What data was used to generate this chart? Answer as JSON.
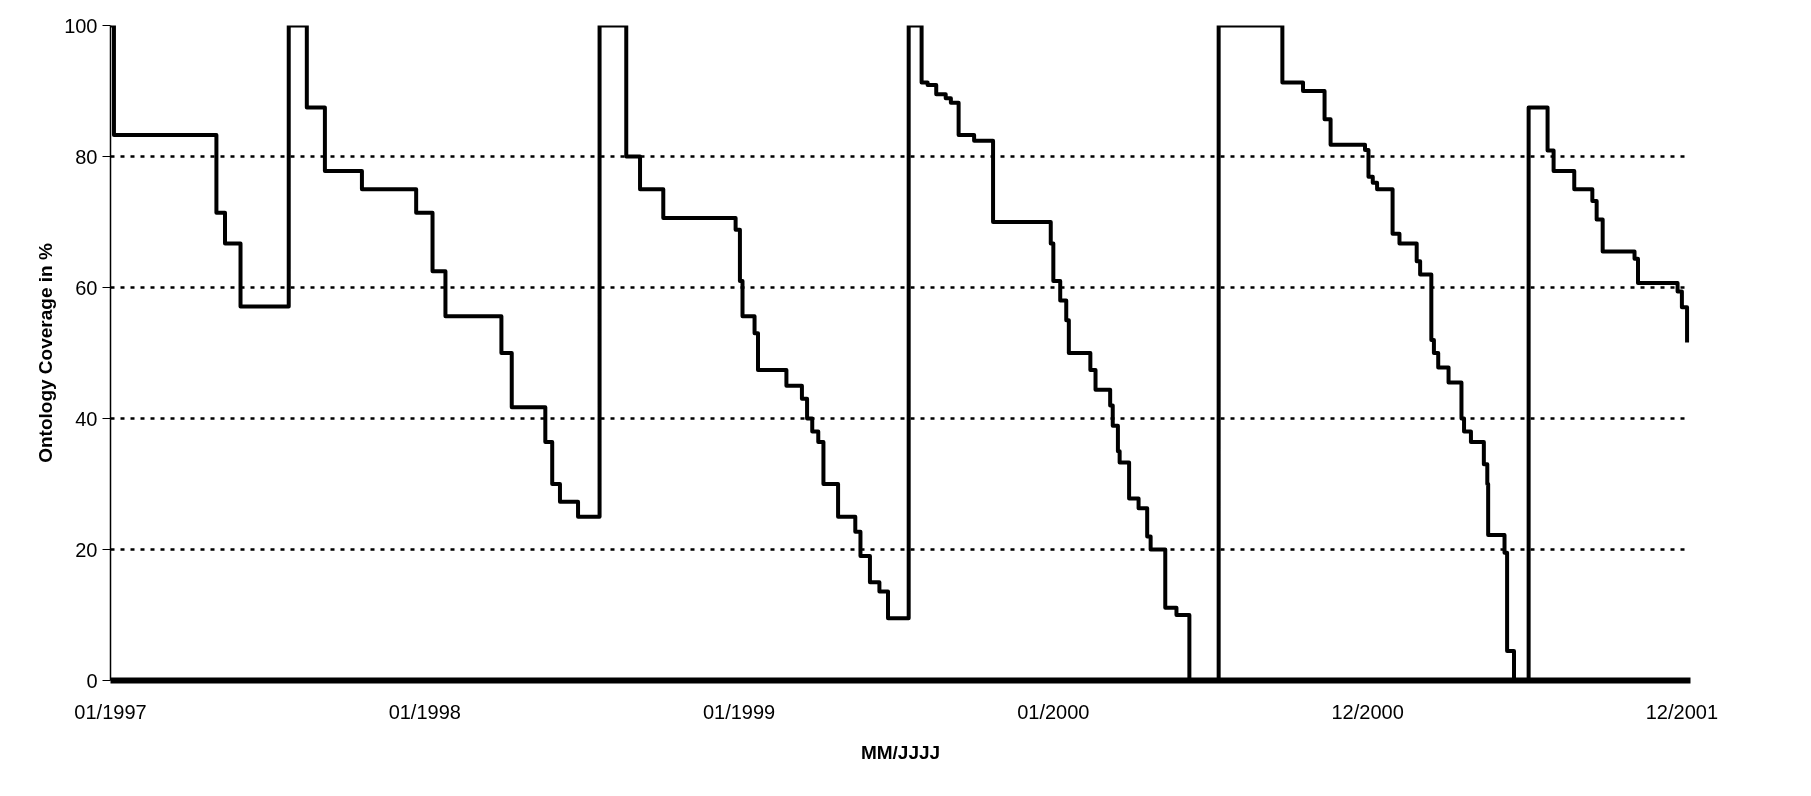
{
  "chart_data": {
    "type": "step",
    "xlabel": "MM/JJJJ",
    "ylabel": "Ontology Coverage in %",
    "x": [
      "1997-01-01",
      "1997-01-05",
      "1997-05-04",
      "1997-05-14",
      "1997-06-01",
      "1997-07-27",
      "1997-08-17",
      "1997-09-07",
      "1997-10-20",
      "1997-12-22",
      "1998-01-10",
      "1998-01-25",
      "1998-03-31",
      "1998-04-12",
      "1998-05-21",
      "1998-05-29",
      "1998-06-07",
      "1998-06-28",
      "1998-07-23",
      "1998-08-23",
      "1998-09-08",
      "1998-10-05",
      "1998-12-28",
      "1999-01-02",
      "1999-01-05",
      "1999-01-19",
      "1999-01-23",
      "1999-02-25",
      "1999-03-15",
      "1999-03-21",
      "1999-03-27",
      "1999-04-03",
      "1999-04-09",
      "1999-04-26",
      "1999-05-16",
      "1999-05-22",
      "1999-06-02",
      "1999-06-13",
      "1999-06-23",
      "1999-07-17",
      "1999-08-01",
      "1999-08-08",
      "1999-08-18",
      "1999-08-29",
      "1999-09-04",
      "1999-09-13",
      "1999-10-01",
      "1999-10-23",
      "1999-12-29",
      "2000-01-01",
      "2000-01-09",
      "2000-01-16",
      "2000-01-19",
      "2000-02-13",
      "2000-02-19",
      "2000-03-07",
      "2000-03-10",
      "2000-03-16",
      "2000-03-18",
      "2000-03-29",
      "2000-04-09",
      "2000-04-19",
      "2000-04-23",
      "2000-05-10",
      "2000-05-23",
      "2000-06-07",
      "2000-07-11",
      "2000-09-23",
      "2000-10-17",
      "2000-11-11",
      "2000-11-18",
      "2000-12-28",
      "2001-01-01",
      "2001-01-06",
      "2001-01-11",
      "2001-01-29",
      "2001-02-06",
      "2001-02-26",
      "2001-03-02",
      "2001-03-15",
      "2001-03-18",
      "2001-03-23",
      "2001-04-04",
      "2001-04-19",
      "2001-04-22",
      "2001-04-30",
      "2001-05-15",
      "2001-05-19",
      "2001-05-20",
      "2001-06-08",
      "2001-06-11",
      "2001-06-19",
      "2001-07-06",
      "2001-07-28",
      "2001-08-04",
      "2001-08-28",
      "2001-09-18",
      "2001-09-23",
      "2001-09-30",
      "2001-11-06",
      "2001-11-10",
      "2001-12-26",
      "2001-12-31",
      "2002-01-06"
    ],
    "series": [
      {
        "color": "#000000",
        "values": [
          100,
          83.3,
          71.4,
          66.7,
          57.1,
          100,
          87.5,
          77.8,
          75,
          71.4,
          62.5,
          55.6,
          50,
          41.7,
          36.4,
          30,
          27.3,
          25,
          100,
          80,
          75,
          70.6,
          68.8,
          61,
          55.6,
          53,
          47.4,
          45,
          43,
          40,
          38,
          36.4,
          30,
          25,
          22.7,
          19,
          15,
          13.6,
          9.5,
          100,
          91.3,
          90.9,
          89.5,
          88.9,
          88.2,
          83.3,
          82.4,
          70,
          66.7,
          61,
          58,
          55,
          50,
          47.4,
          44.4,
          42,
          38.9,
          35,
          33.3,
          27.8,
          26.3,
          22,
          20,
          11.1,
          10,
          0,
          100,
          91.3,
          90,
          85.7,
          81.8,
          81,
          76.9,
          76,
          75,
          68.2,
          66.7,
          64,
          62,
          52,
          50,
          47.8,
          45.5,
          40,
          38,
          36.4,
          33,
          30,
          22.2,
          19.5,
          4.5,
          0,
          87.5,
          80.9,
          77.8,
          75,
          73.2,
          70.4,
          65.5,
          64.4,
          60.7,
          59.4,
          57,
          51.6
        ]
      }
    ],
    "xlim": [
      "1997-01-01",
      "2002-01-10"
    ],
    "xticks": [
      {
        "value": "1997-01-01",
        "label": "01/1997"
      },
      {
        "value": "1998-01-01",
        "label": "01/1998"
      },
      {
        "value": "1999-01-01",
        "label": "01/1999"
      },
      {
        "value": "2000-01-01",
        "label": "01/2000"
      },
      {
        "value": "2000-12-31",
        "label": "12/2000"
      },
      {
        "value": "2001-12-31",
        "label": "12/2001"
      }
    ],
    "ylim": [
      0,
      100
    ],
    "yticks": [
      0,
      20,
      40,
      60,
      80,
      100
    ],
    "grid": "y",
    "line_style": "solid"
  }
}
